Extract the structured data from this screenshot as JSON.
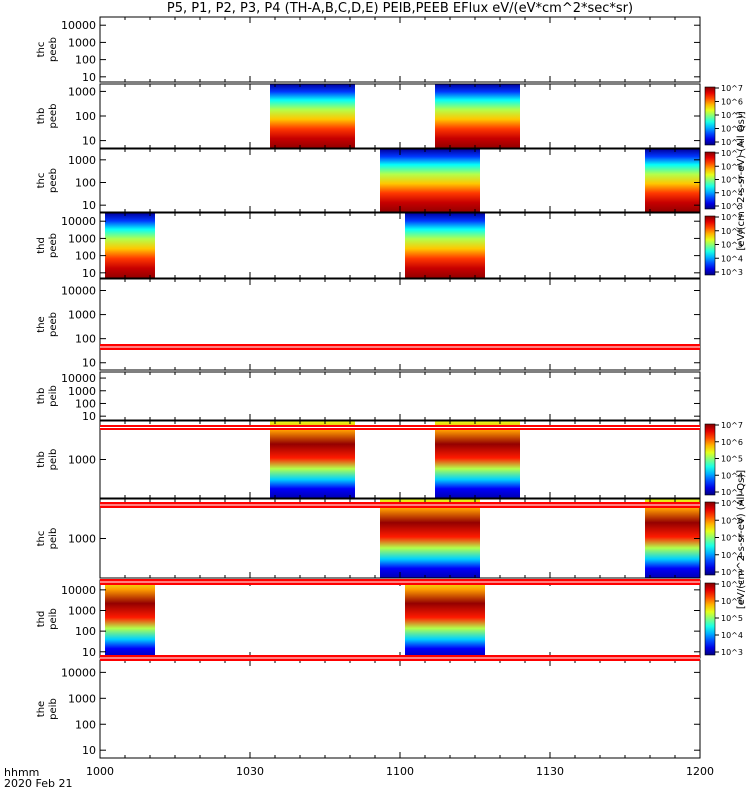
{
  "title": "P5, P1, P2, P3, P4 (TH-A,B,C,D,E) PEIB,PEEB EFlux eV/(eV*cm^2*sec*sr)",
  "time_axis": {
    "unit_label": "hhmm",
    "date_label": "2020 Feb 21",
    "ticks": [
      "1000",
      "1030",
      "1100",
      "1130",
      "1200"
    ],
    "range_minutes": [
      0,
      120
    ]
  },
  "colorbar": {
    "label_peeb": "eV/(cm^2-s-sr-eV) (All Qs)",
    "label_peib": "eV/(cm^2-s-sr-eV) (All Qs)",
    "tick_exponents": [
      "10^3",
      "10^4",
      "10^5",
      "10^6",
      "10^7",
      "10^8"
    ]
  },
  "chart_data": {
    "type": "heatmap",
    "x_unit": "UT minutes after 10:00",
    "y_scale": "log",
    "panels": [
      {
        "label": "thc peeb",
        "ymin": 5,
        "ymax": 30000,
        "yticks": [
          "10",
          "100",
          "1000",
          "10000"
        ],
        "intervals": [],
        "colorbar": false
      },
      {
        "label": "thb peeb",
        "ymin": 5,
        "ymax": 2000,
        "yticks": [
          "10",
          "100",
          "1000"
        ],
        "intervals": [
          [
            34,
            51
          ],
          [
            67,
            84
          ]
        ],
        "colorbar": true
      },
      {
        "label": "thc peeb",
        "ymin": 5,
        "ymax": 3000,
        "yticks": [
          "10",
          "100",
          "1000"
        ],
        "intervals": [
          [
            56,
            76
          ],
          [
            109,
            120
          ]
        ],
        "colorbar": true
      },
      {
        "label": "thd peeb",
        "ymin": 5,
        "ymax": 30000,
        "yticks": [
          "10",
          "100",
          "1000",
          "10000"
        ],
        "intervals": [
          [
            1,
            11
          ],
          [
            61,
            77
          ]
        ],
        "colorbar": true
      },
      {
        "label": "the peeb",
        "ymin": 5,
        "ymax": 30000,
        "yticks": [
          "10",
          "100",
          "1000",
          "10000"
        ],
        "intervals": [],
        "colorbar": false
      },
      {
        "label": "thb peib",
        "ymin": 5,
        "ymax": 30000,
        "yticks": [
          "10",
          "100",
          "1000",
          "10000"
        ],
        "intervals": [],
        "colorbar": false
      },
      {
        "label": "thb peib",
        "ymin": 200,
        "ymax": 5000,
        "yticks": [
          "1000"
        ],
        "intervals": [
          [
            34,
            51
          ],
          [
            67,
            84
          ]
        ],
        "colorbar": true
      },
      {
        "label": "thc peib",
        "ymin": 200,
        "ymax": 5000,
        "yticks": [
          "1000"
        ],
        "intervals": [
          [
            56,
            76
          ],
          [
            109,
            120
          ]
        ],
        "colorbar": true
      },
      {
        "label": "thd peib",
        "ymin": 5,
        "ymax": 30000,
        "yticks": [
          "10",
          "100",
          "1000",
          "10000"
        ],
        "intervals": [
          [
            1,
            11
          ],
          [
            61,
            77
          ]
        ],
        "colorbar": true
      },
      {
        "label": "the peib",
        "ymin": 5,
        "ymax": 30000,
        "yticks": [
          "10",
          "100",
          "1000",
          "10000"
        ],
        "intervals": [],
        "colorbar": false
      }
    ]
  }
}
